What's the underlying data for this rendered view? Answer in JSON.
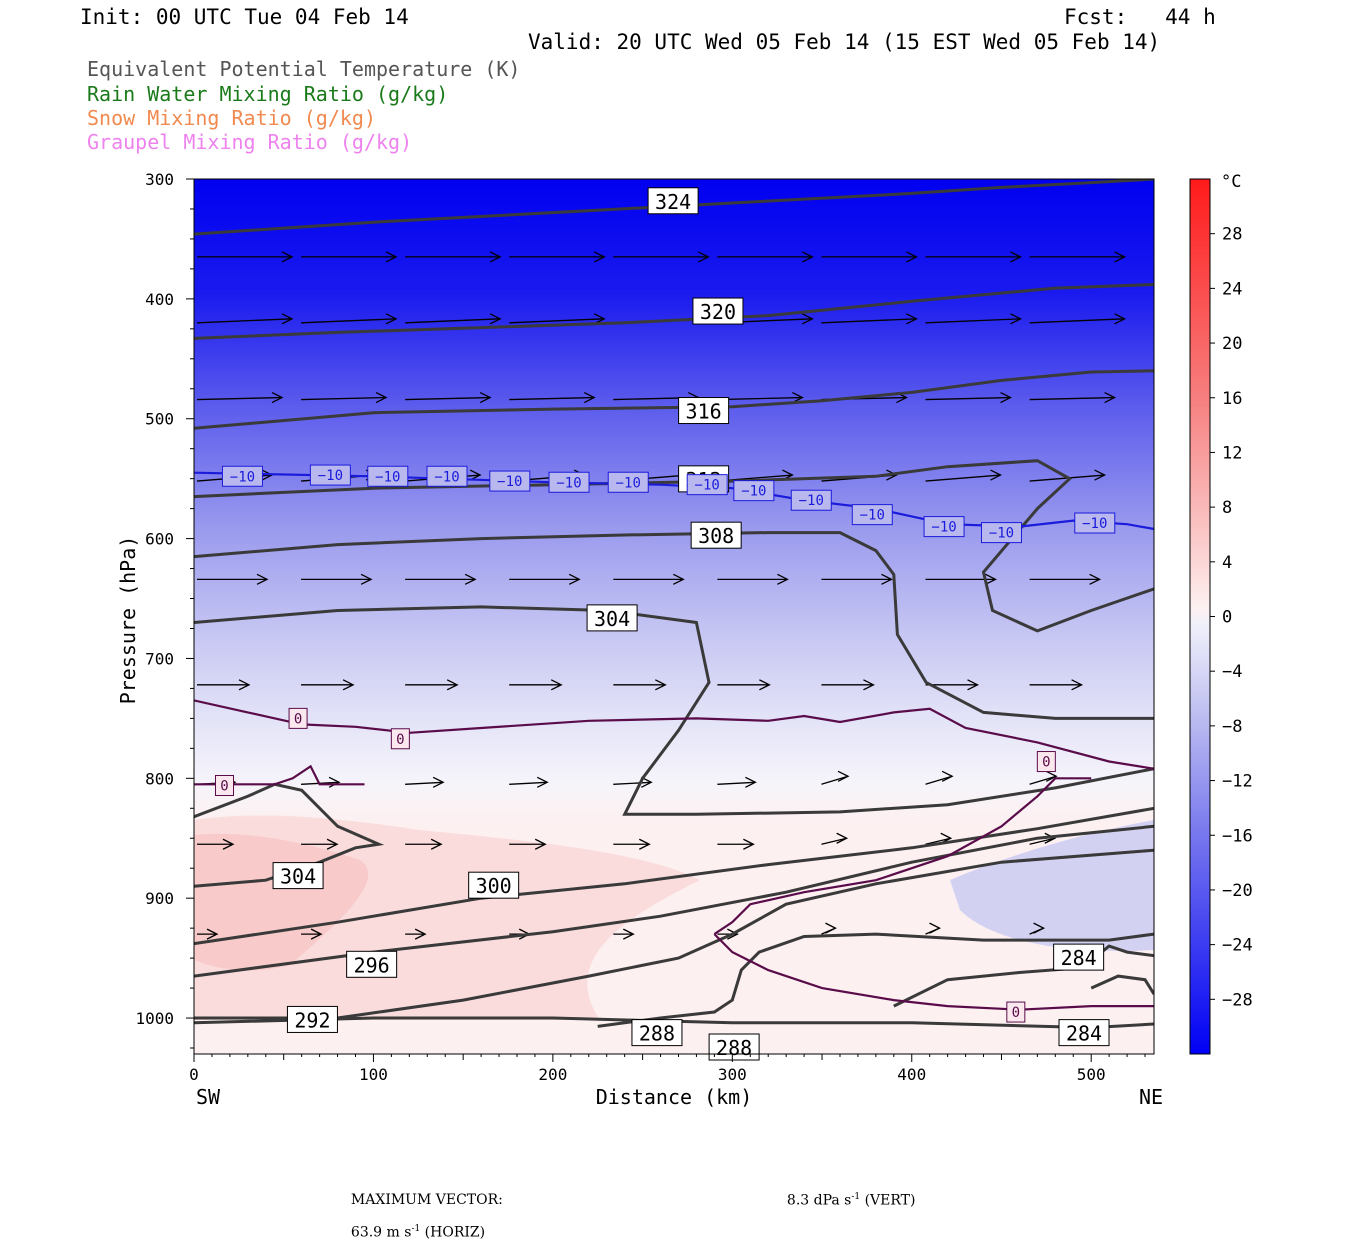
{
  "header": {
    "init": "Init: 00 UTC Tue 04 Feb 14",
    "fcst": "Fcst:   44 h",
    "valid": "Valid: 20 UTC Wed 05 Feb 14 (15 EST Wed 05 Feb 14)"
  },
  "legend": [
    {
      "label": "Equivalent Potential Temperature (K)",
      "color": "#555555"
    },
    {
      "label": "Rain Water Mixing Ratio (g/kg)",
      "color": "#1a7a1a"
    },
    {
      "label": "Snow Mixing Ratio (g/kg)",
      "color": "#f08a50"
    },
    {
      "label": "Graupel Mixing Ratio (g/kg)",
      "color": "#ee82ee"
    }
  ],
  "footer": {
    "max_vector_label": "MAXIMUM VECTOR:",
    "horiz_value": "63.9 m s",
    "horiz_suffix": " (HORIZ)",
    "vert_value": "8.3 dPa s",
    "vert_suffix": " (VERT)",
    "exp": "-1"
  },
  "chart_data": {
    "type": "cross-section",
    "xlabel": "Distance (km)",
    "ylabel": "Pressure (hPa)",
    "xlim": [
      0,
      535
    ],
    "ylim": [
      1030,
      300
    ],
    "x_ticks": [
      0,
      100,
      200,
      300,
      400,
      500
    ],
    "y_ticks": [
      300,
      400,
      500,
      600,
      700,
      800,
      900,
      1000
    ],
    "x_end_labels": {
      "left": "SW",
      "right": "NE"
    },
    "colorbar": {
      "unit": "°C",
      "labels": [
        28,
        24,
        20,
        16,
        12,
        8,
        4,
        0,
        -4,
        -8,
        -12,
        -16,
        -20,
        -24,
        -28
      ]
    },
    "theta_e_contours": [
      {
        "label": "324",
        "points": [
          [
            0,
            346
          ],
          [
            100,
            336
          ],
          [
            200,
            328
          ],
          [
            300,
            320
          ],
          [
            400,
            312
          ],
          [
            450,
            307
          ],
          [
            500,
            303
          ],
          [
            535,
            300
          ]
        ],
        "label_at": [
          267,
          319
        ]
      },
      {
        "label": "320",
        "points": [
          [
            0,
            433
          ],
          [
            80,
            428
          ],
          [
            160,
            424
          ],
          [
            240,
            420
          ],
          [
            320,
            414
          ],
          [
            400,
            402
          ],
          [
            480,
            391
          ],
          [
            535,
            388
          ]
        ],
        "label_at": [
          292,
          411
        ]
      },
      {
        "label": "316",
        "points": [
          [
            0,
            508
          ],
          [
            100,
            495
          ],
          [
            200,
            492
          ],
          [
            300,
            490
          ],
          [
            350,
            485
          ],
          [
            400,
            478
          ],
          [
            450,
            468
          ],
          [
            500,
            461
          ],
          [
            535,
            460
          ]
        ],
        "label_at": [
          284,
          494
        ]
      },
      {
        "label": "312",
        "points": [
          [
            0,
            565
          ],
          [
            100,
            558
          ],
          [
            200,
            555
          ],
          [
            300,
            552
          ],
          [
            380,
            548
          ],
          [
            420,
            540
          ],
          [
            470,
            535
          ],
          [
            488,
            550
          ],
          [
            470,
            575
          ],
          [
            440,
            628
          ],
          [
            445,
            660
          ],
          [
            470,
            677
          ],
          [
            500,
            660
          ],
          [
            535,
            642
          ]
        ],
        "label_at": [
          284,
          551
        ]
      },
      {
        "label": "308",
        "points": [
          [
            0,
            615
          ],
          [
            80,
            605
          ],
          [
            160,
            600
          ],
          [
            240,
            597
          ],
          [
            320,
            595
          ],
          [
            360,
            595
          ],
          [
            380,
            610
          ],
          [
            390,
            630
          ],
          [
            392,
            680
          ],
          [
            408,
            720
          ],
          [
            440,
            745
          ],
          [
            480,
            750
          ],
          [
            535,
            750
          ]
        ],
        "label_at": [
          291,
          598
        ]
      },
      {
        "label": "304",
        "points": [
          [
            0,
            670
          ],
          [
            80,
            660
          ],
          [
            160,
            657
          ],
          [
            230,
            660
          ],
          [
            280,
            670
          ],
          [
            287,
            720
          ],
          [
            270,
            760
          ],
          [
            250,
            800
          ],
          [
            240,
            830
          ],
          [
            280,
            830
          ],
          [
            360,
            828
          ],
          [
            420,
            822
          ],
          [
            480,
            808
          ],
          [
            535,
            792
          ]
        ],
        "label_at": [
          233,
          667
        ]
      },
      {
        "label": "304",
        "points": [
          [
            0,
            890
          ],
          [
            40,
            885
          ],
          [
            70,
            870
          ],
          [
            90,
            858
          ],
          [
            103,
            855
          ],
          [
            80,
            840
          ],
          [
            60,
            810
          ],
          [
            45,
            805
          ],
          [
            30,
            815
          ],
          [
            0,
            832
          ]
        ],
        "label_at": [
          58,
          882
        ]
      },
      {
        "label": "300",
        "points": [
          [
            0,
            938
          ],
          [
            80,
            920
          ],
          [
            160,
            900
          ],
          [
            240,
            888
          ],
          [
            320,
            872
          ],
          [
            400,
            858
          ],
          [
            470,
            842
          ],
          [
            535,
            825
          ]
        ],
        "label_at": [
          167,
          890
        ]
      },
      {
        "label": "296",
        "points": [
          [
            0,
            965
          ],
          [
            100,
            945
          ],
          [
            200,
            928
          ],
          [
            260,
            915
          ],
          [
            330,
            895
          ],
          [
            400,
            870
          ],
          [
            470,
            850
          ],
          [
            535,
            840
          ]
        ],
        "label_at": [
          99,
          956
        ]
      },
      {
        "label": "292",
        "points": [
          [
            0,
            1000
          ],
          [
            80,
            1000
          ],
          [
            150,
            985
          ],
          [
            220,
            965
          ],
          [
            270,
            950
          ],
          [
            300,
            930
          ],
          [
            330,
            905
          ],
          [
            380,
            888
          ],
          [
            450,
            870
          ],
          [
            535,
            860
          ]
        ],
        "label_at": [
          66,
          1002
        ]
      },
      {
        "label": "288",
        "points": [
          [
            225,
            1007
          ],
          [
            260,
            1000
          ],
          [
            290,
            995
          ],
          [
            300,
            985
          ],
          [
            305,
            960
          ],
          [
            315,
            945
          ],
          [
            340,
            932
          ],
          [
            380,
            930
          ],
          [
            440,
            935
          ],
          [
            480,
            935
          ],
          [
            510,
            935
          ],
          [
            535,
            930
          ]
        ],
        "label_at": [
          258,
          1013
        ]
      },
      {
        "label": "284",
        "points": [
          [
            390,
            990
          ],
          [
            420,
            968
          ],
          [
            460,
            962
          ],
          [
            495,
            958
          ],
          [
            510,
            940
          ],
          [
            520,
            945
          ],
          [
            535,
            948
          ]
        ],
        "label_at": [
          493,
          950
        ]
      },
      {
        "label": "288",
        "points": [
          [
            0,
            1004
          ],
          [
            100,
            1000
          ],
          [
            200,
            1000
          ],
          [
            300,
            1004
          ],
          [
            400,
            1004
          ],
          [
            500,
            1008
          ],
          [
            535,
            1005
          ]
        ],
        "label_at": [
          301,
          1025
        ]
      },
      {
        "label": "284",
        "points": [
          [
            500,
            975
          ],
          [
            515,
            965
          ],
          [
            530,
            968
          ],
          [
            535,
            980
          ]
        ],
        "label_at": [
          496,
          1013
        ]
      }
    ],
    "isotherms": [
      {
        "value": "-10",
        "color": "#1b1bdc",
        "points": [
          [
            0,
            545
          ],
          [
            100,
            548
          ],
          [
            200,
            553
          ],
          [
            260,
            555
          ],
          [
            300,
            558
          ],
          [
            340,
            568
          ],
          [
            380,
            575
          ],
          [
            420,
            588
          ],
          [
            460,
            590
          ],
          [
            490,
            585
          ],
          [
            520,
            588
          ],
          [
            535,
            592
          ]
        ],
        "labels_at": [
          [
            27,
            548
          ],
          [
            76,
            547
          ],
          [
            108,
            548
          ],
          [
            141,
            548
          ],
          [
            176,
            552
          ],
          [
            209,
            553
          ],
          [
            242,
            553
          ],
          [
            286,
            555
          ],
          [
            312,
            560
          ],
          [
            344,
            568
          ],
          [
            378,
            580
          ],
          [
            418,
            590
          ],
          [
            450,
            595
          ],
          [
            502,
            587
          ]
        ]
      },
      {
        "value": "0",
        "color": "#5a0c4a",
        "points": [
          [
            0,
            735
          ],
          [
            30,
            745
          ],
          [
            60,
            755
          ],
          [
            90,
            757
          ],
          [
            120,
            762
          ],
          [
            160,
            758
          ],
          [
            220,
            752
          ],
          [
            280,
            750
          ],
          [
            320,
            752
          ],
          [
            340,
            748
          ],
          [
            360,
            753
          ],
          [
            390,
            745
          ],
          [
            410,
            742
          ],
          [
            430,
            758
          ],
          [
            470,
            770
          ],
          [
            510,
            786
          ],
          [
            535,
            792
          ]
        ],
        "labels_at": [
          [
            58,
            750
          ],
          [
            115,
            767
          ],
          [
            475,
            786
          ]
        ]
      },
      {
        "value": "0",
        "color": "#5a0c4a",
        "points": [
          [
            0,
            805
          ],
          [
            30,
            805
          ],
          [
            45,
            805
          ],
          [
            55,
            800
          ],
          [
            65,
            790
          ],
          [
            70,
            805
          ],
          [
            95,
            805
          ]
        ],
        "labels_at": [
          [
            17,
            806
          ]
        ]
      },
      {
        "value": "0",
        "color": "#5a0c4a",
        "points": [
          [
            290,
            930
          ],
          [
            300,
            920
          ],
          [
            310,
            905
          ],
          [
            340,
            895
          ],
          [
            380,
            885
          ],
          [
            420,
            865
          ],
          [
            450,
            840
          ],
          [
            470,
            815
          ],
          [
            480,
            800
          ],
          [
            500,
            800
          ]
        ],
        "labels_at": []
      },
      {
        "value": "0",
        "color": "#5a0c4a",
        "points": [
          [
            290,
            930
          ],
          [
            300,
            945
          ],
          [
            320,
            960
          ],
          [
            350,
            975
          ],
          [
            390,
            985
          ],
          [
            420,
            990
          ],
          [
            460,
            993
          ],
          [
            500,
            990
          ],
          [
            535,
            990
          ]
        ],
        "labels_at": [
          [
            458,
            995
          ]
        ]
      }
    ]
  }
}
